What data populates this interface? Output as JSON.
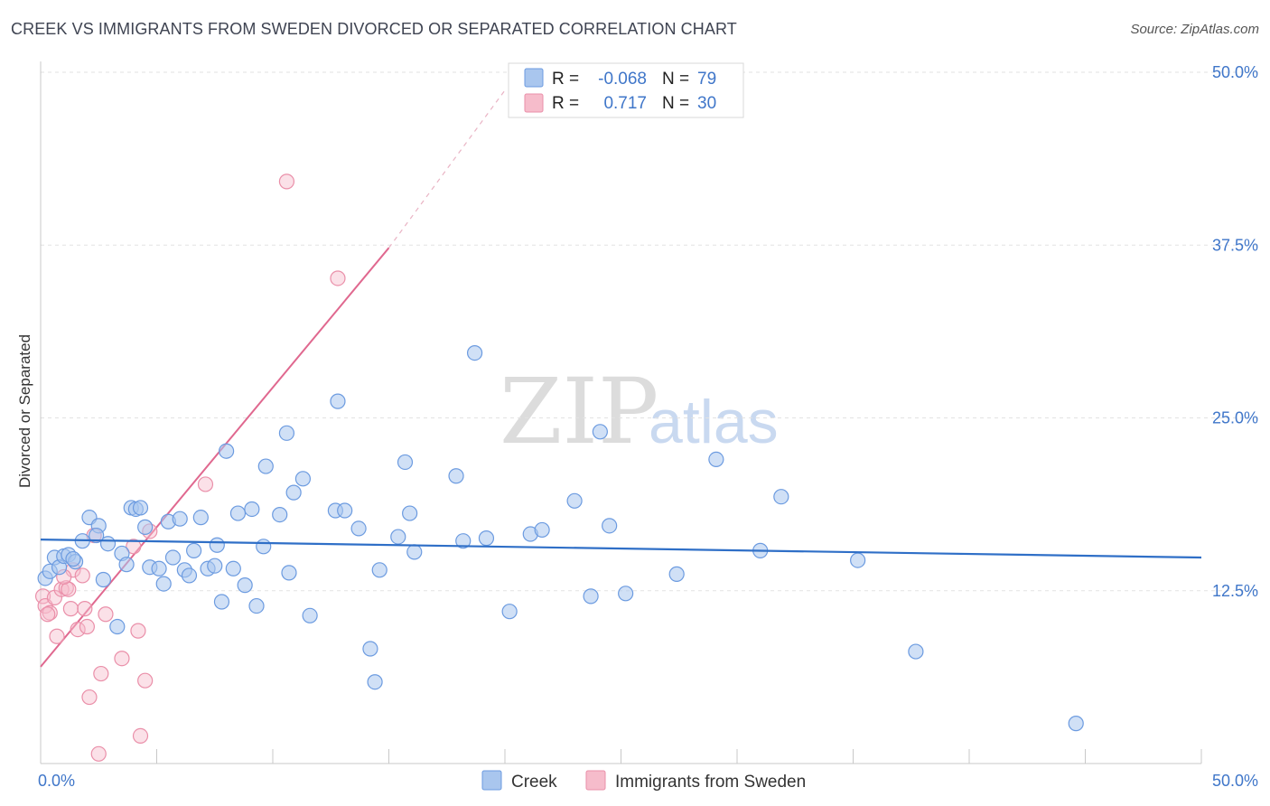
{
  "title": "CREEK VS IMMIGRANTS FROM SWEDEN DIVORCED OR SEPARATED CORRELATION CHART",
  "source": "Source: ZipAtlas.com",
  "watermark": {
    "zip": "ZIP",
    "atlas": "atlas"
  },
  "colors": {
    "creek_fill": "#a9c6ee",
    "creek_stroke": "#6c9be0",
    "creek_line": "#2f6fc7",
    "sweden_fill": "#f6bccb",
    "sweden_stroke": "#ea8fa9",
    "sweden_line": "#e0688f",
    "axis_label": "#3f76c9"
  },
  "legend": {
    "r_label": "R =",
    "n_label": "N =",
    "rows": [
      {
        "series": "Creek",
        "r": "-0.068",
        "n": "79"
      },
      {
        "series": "Immigrants from Sweden",
        "r": "0.717",
        "n": "30"
      }
    ]
  },
  "chart_data": {
    "type": "scatter",
    "title": "CREEK VS IMMIGRANTS FROM SWEDEN DIVORCED OR SEPARATED CORRELATION CHART",
    "xlabel": "",
    "ylabel": "Divorced or Separated",
    "xlim": [
      0,
      50
    ],
    "ylim": [
      0,
      50
    ],
    "x_tick_labels": [
      "0.0%",
      "50.0%"
    ],
    "y_ticks": [
      12.5,
      25.0,
      37.5,
      50.0
    ],
    "y_tick_labels": [
      "12.5%",
      "25.0%",
      "37.5%",
      "50.0%"
    ],
    "grid": true,
    "legend_position": "top-center",
    "series": [
      {
        "name": "Creek",
        "trendline": {
          "x": [
            0,
            50
          ],
          "y": [
            16.2,
            14.9
          ]
        },
        "points": [
          [
            0.2,
            13.4
          ],
          [
            0.4,
            13.9
          ],
          [
            0.6,
            14.9
          ],
          [
            0.8,
            14.2
          ],
          [
            1.0,
            15.0
          ],
          [
            1.2,
            15.1
          ],
          [
            1.5,
            14.6
          ],
          [
            1.8,
            16.1
          ],
          [
            2.1,
            17.8
          ],
          [
            2.5,
            17.2
          ],
          [
            2.7,
            13.3
          ],
          [
            2.9,
            15.9
          ],
          [
            3.3,
            9.9
          ],
          [
            3.5,
            15.2
          ],
          [
            3.7,
            14.4
          ],
          [
            3.9,
            18.5
          ],
          [
            4.1,
            18.4
          ],
          [
            4.3,
            18.5
          ],
          [
            4.5,
            17.1
          ],
          [
            4.7,
            14.2
          ],
          [
            5.1,
            14.1
          ],
          [
            5.3,
            13.0
          ],
          [
            5.5,
            17.5
          ],
          [
            5.7,
            14.9
          ],
          [
            6.0,
            17.7
          ],
          [
            6.2,
            14.0
          ],
          [
            6.4,
            13.6
          ],
          [
            6.6,
            15.4
          ],
          [
            6.9,
            17.8
          ],
          [
            7.2,
            14.1
          ],
          [
            7.5,
            14.3
          ],
          [
            7.6,
            15.8
          ],
          [
            7.8,
            11.7
          ],
          [
            8.0,
            22.6
          ],
          [
            8.3,
            14.1
          ],
          [
            8.5,
            18.1
          ],
          [
            8.8,
            12.9
          ],
          [
            9.1,
            18.4
          ],
          [
            9.3,
            11.4
          ],
          [
            9.6,
            15.7
          ],
          [
            9.7,
            21.5
          ],
          [
            10.3,
            18.0
          ],
          [
            10.6,
            23.9
          ],
          [
            10.7,
            13.8
          ],
          [
            10.9,
            19.6
          ],
          [
            11.3,
            20.6
          ],
          [
            11.6,
            10.7
          ],
          [
            12.7,
            18.3
          ],
          [
            12.8,
            26.2
          ],
          [
            13.1,
            18.3
          ],
          [
            13.7,
            17.0
          ],
          [
            14.2,
            8.3
          ],
          [
            14.4,
            5.9
          ],
          [
            14.6,
            14.0
          ],
          [
            15.4,
            16.4
          ],
          [
            15.7,
            21.8
          ],
          [
            15.9,
            18.1
          ],
          [
            16.1,
            15.3
          ],
          [
            17.9,
            20.8
          ],
          [
            18.2,
            16.1
          ],
          [
            18.7,
            29.7
          ],
          [
            19.2,
            16.3
          ],
          [
            20.2,
            11.0
          ],
          [
            21.1,
            16.6
          ],
          [
            21.6,
            16.9
          ],
          [
            23.0,
            19.0
          ],
          [
            23.7,
            12.1
          ],
          [
            24.1,
            24.0
          ],
          [
            24.5,
            17.2
          ],
          [
            25.2,
            12.3
          ],
          [
            27.4,
            13.7
          ],
          [
            29.1,
            22.0
          ],
          [
            31.0,
            15.4
          ],
          [
            31.9,
            19.3
          ],
          [
            35.2,
            14.7
          ],
          [
            37.7,
            8.1
          ],
          [
            44.6,
            2.9
          ],
          [
            2.4,
            16.5
          ],
          [
            1.4,
            14.8
          ]
        ]
      },
      {
        "name": "Immigrants from Sweden",
        "trendline": {
          "x": [
            0,
            15
          ],
          "y": [
            7.0,
            37.3
          ]
        },
        "trendline_extension": {
          "x": [
            15,
            20
          ],
          "y": [
            37.3,
            48.7
          ]
        },
        "points": [
          [
            0.1,
            12.1
          ],
          [
            0.2,
            11.4
          ],
          [
            0.4,
            10.9
          ],
          [
            0.6,
            12.0
          ],
          [
            0.7,
            9.2
          ],
          [
            0.9,
            12.6
          ],
          [
            1.1,
            12.7
          ],
          [
            1.2,
            12.6
          ],
          [
            1.3,
            11.2
          ],
          [
            1.4,
            14.0
          ],
          [
            1.6,
            9.7
          ],
          [
            1.8,
            13.6
          ],
          [
            1.9,
            11.2
          ],
          [
            2.0,
            9.9
          ],
          [
            2.1,
            4.8
          ],
          [
            2.3,
            16.5
          ],
          [
            2.5,
            0.7
          ],
          [
            2.6,
            6.5
          ],
          [
            2.8,
            10.8
          ],
          [
            3.5,
            7.6
          ],
          [
            4.0,
            15.7
          ],
          [
            4.2,
            9.6
          ],
          [
            4.3,
            2.0
          ],
          [
            4.5,
            6.0
          ],
          [
            4.7,
            16.8
          ],
          [
            7.1,
            20.2
          ],
          [
            10.6,
            42.1
          ],
          [
            12.8,
            35.1
          ],
          [
            0.3,
            10.8
          ],
          [
            1.0,
            13.5
          ]
        ]
      }
    ]
  }
}
